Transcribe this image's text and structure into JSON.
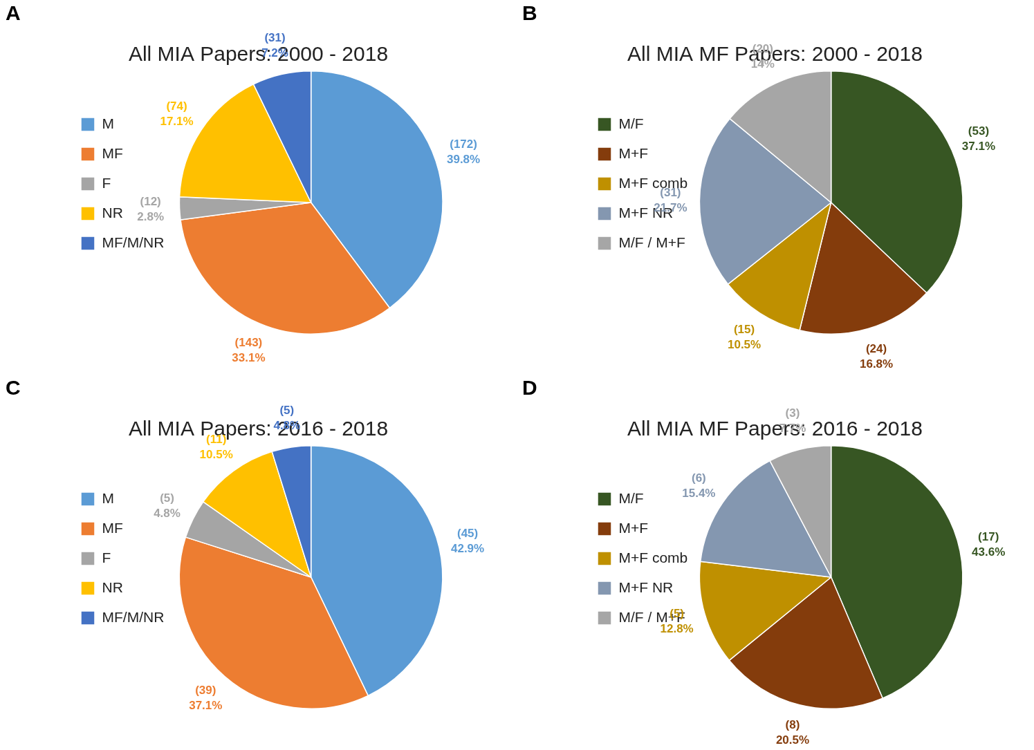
{
  "chart_data": [
    {
      "panel": "A",
      "type": "pie",
      "title": "All MIA Papers: 2000 - 2018",
      "categories": [
        "M",
        "MF",
        "F",
        "NR",
        "MF/M/NR"
      ],
      "values": [
        39.8,
        33.1,
        2.8,
        17.1,
        7.2
      ],
      "value_labels": [
        "39.8%",
        "33.1%",
        "2.8%",
        "17.1%",
        "7.2%"
      ],
      "counts": [
        172,
        143,
        12,
        74,
        31
      ],
      "count_labels": [
        "(172)",
        "(143)",
        "(12)",
        "(74)",
        "(31)"
      ],
      "colors": [
        "#5b9bd5",
        "#ed7d31",
        "#a5a5a5",
        "#ffc000",
        "#4472c4"
      ],
      "legend": "left",
      "data_labels": true
    },
    {
      "panel": "B",
      "type": "pie",
      "title": "All MIA MF Papers: 2000 - 2018",
      "categories": [
        "M/F",
        "M+F",
        "M+F comb",
        "M+F NR",
        "M/F / M+F"
      ],
      "values": [
        37.1,
        16.8,
        10.5,
        21.7,
        14
      ],
      "value_labels": [
        "37.1%",
        "16.8%",
        "10.5%",
        "21.7%",
        "14%"
      ],
      "counts": [
        53,
        24,
        15,
        31,
        20
      ],
      "count_labels": [
        "(53)",
        "(24)",
        "(15)",
        "(31)",
        "(20)"
      ],
      "colors": [
        "#375623",
        "#843c0c",
        "#bf9000",
        "#8497b0",
        "#a6a6a6"
      ],
      "legend": "left",
      "data_labels": true
    },
    {
      "panel": "C",
      "type": "pie",
      "title": "All MIA Papers: 2016 - 2018",
      "categories": [
        "M",
        "MF",
        "F",
        "NR",
        "MF/M/NR"
      ],
      "values": [
        42.9,
        37.1,
        4.8,
        10.5,
        4.8
      ],
      "value_labels": [
        "42.9%",
        "37.1%",
        "4.8%",
        "10.5%",
        "4.8%"
      ],
      "counts": [
        45,
        39,
        5,
        11,
        5
      ],
      "count_labels": [
        "(45)",
        "(39)",
        "(5)",
        "(11)",
        "(5)"
      ],
      "colors": [
        "#5b9bd5",
        "#ed7d31",
        "#a5a5a5",
        "#ffc000",
        "#4472c4"
      ],
      "legend": "left",
      "data_labels": true
    },
    {
      "panel": "D",
      "type": "pie",
      "title": "All MIA MF Papers: 2016 - 2018",
      "categories": [
        "M/F",
        "M+F",
        "M+F comb",
        "M+F NR",
        "M/F / M+F"
      ],
      "values": [
        43.6,
        20.5,
        12.8,
        15.4,
        7.7
      ],
      "value_labels": [
        "43.6%",
        "20.5%",
        "12.8%",
        "15.4%",
        "7.7%"
      ],
      "counts": [
        17,
        8,
        5,
        6,
        3
      ],
      "count_labels": [
        "(17)",
        "(8)",
        "(5)",
        "(6)",
        "(3)"
      ],
      "colors": [
        "#375623",
        "#843c0c",
        "#bf9000",
        "#8497b0",
        "#a6a6a6"
      ],
      "legend": "left",
      "data_labels": true
    }
  ]
}
